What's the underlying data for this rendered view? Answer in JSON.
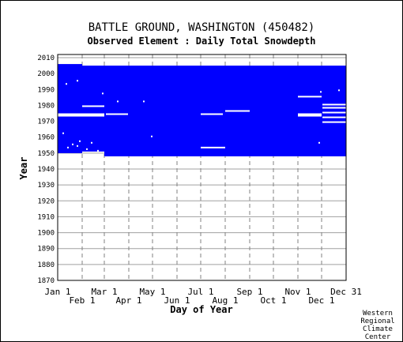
{
  "chart_data": {
    "type": "heatmap",
    "title": "BATTLE GROUND, WASHINGTON   (450482)",
    "subtitle": "Observed Element : Daily Total Snowdepth",
    "xlabel": "Day of Year",
    "ylabel": "Year",
    "ylim": [
      1870,
      2012
    ],
    "xlim": [
      1,
      366
    ],
    "y_ticks": [
      1870,
      1880,
      1890,
      1900,
      1910,
      1920,
      1930,
      1940,
      1950,
      1960,
      1970,
      1980,
      1990,
      2000,
      2010
    ],
    "x_ticks_top_row": [
      {
        "label": "Jan 1",
        "day": 1
      },
      {
        "label": "Mar 1",
        "day": 60
      },
      {
        "label": "May 1",
        "day": 121
      },
      {
        "label": "Jul 1",
        "day": 182
      },
      {
        "label": "Sep 1",
        "day": 244
      },
      {
        "label": "Nov 1",
        "day": 305
      },
      {
        "label": "Dec 31",
        "day": 366
      }
    ],
    "x_ticks_bottom_row": [
      {
        "label": "Feb 1",
        "day": 32
      },
      {
        "label": "Apr 1",
        "day": 91
      },
      {
        "label": "Jun 1",
        "day": 152
      },
      {
        "label": "Aug 1",
        "day": 213
      },
      {
        "label": "Oct 1",
        "day": 274
      },
      {
        "label": "Dec 1",
        "day": 335
      }
    ],
    "grid": true,
    "data_color": "#0000ff",
    "coverage_blocks": [
      {
        "day_start": 1,
        "day_end": 32,
        "year_start": 1950,
        "year_end": 2006
      },
      {
        "day_start": 32,
        "day_end": 60,
        "year_start": 1951,
        "year_end": 2005
      },
      {
        "day_start": 60,
        "day_end": 366,
        "year_start": 1948,
        "year_end": 2005
      }
    ],
    "missing_segments": [
      {
        "year": 1974,
        "day_start": 1,
        "day_end": 60
      },
      {
        "year": 1973,
        "day_start": 1,
        "day_end": 60
      },
      {
        "year": 1979,
        "day_start": 32,
        "day_end": 60
      },
      {
        "year": 1974,
        "day_start": 62,
        "day_end": 90
      },
      {
        "year": 1974,
        "day_start": 182,
        "day_end": 210
      },
      {
        "year": 1976,
        "day_start": 213,
        "day_end": 244
      },
      {
        "year": 1953,
        "day_start": 182,
        "day_end": 213
      },
      {
        "year": 1985,
        "day_start": 305,
        "day_end": 335
      },
      {
        "year": 1974,
        "day_start": 305,
        "day_end": 335
      },
      {
        "year": 1973,
        "day_start": 305,
        "day_end": 335
      },
      {
        "year": 1980,
        "day_start": 336,
        "day_end": 366
      },
      {
        "year": 1978,
        "day_start": 336,
        "day_end": 366
      },
      {
        "year": 1975,
        "day_start": 336,
        "day_end": 366
      },
      {
        "year": 1972,
        "day_start": 336,
        "day_end": 366
      },
      {
        "year": 1969,
        "day_start": 336,
        "day_end": 366
      }
    ],
    "missing_points": [
      {
        "year": 1995,
        "day": 26
      },
      {
        "year": 1993,
        "day": 12
      },
      {
        "year": 1987,
        "day": 58
      },
      {
        "year": 1982,
        "day": 77
      },
      {
        "year": 1982,
        "day": 110
      },
      {
        "year": 1962,
        "day": 8
      },
      {
        "year": 1960,
        "day": 120
      },
      {
        "year": 1957,
        "day": 29
      },
      {
        "year": 1956,
        "day": 44
      },
      {
        "year": 1955,
        "day": 20
      },
      {
        "year": 1954,
        "day": 26
      },
      {
        "year": 1953,
        "day": 14
      },
      {
        "year": 1952,
        "day": 38
      },
      {
        "year": 1951,
        "day": 52
      },
      {
        "year": 1956,
        "day": 332
      },
      {
        "year": 1988,
        "day": 334
      },
      {
        "year": 1989,
        "day": 357
      }
    ]
  },
  "credit": [
    "Western",
    "Regional",
    "Climate",
    "Center"
  ]
}
